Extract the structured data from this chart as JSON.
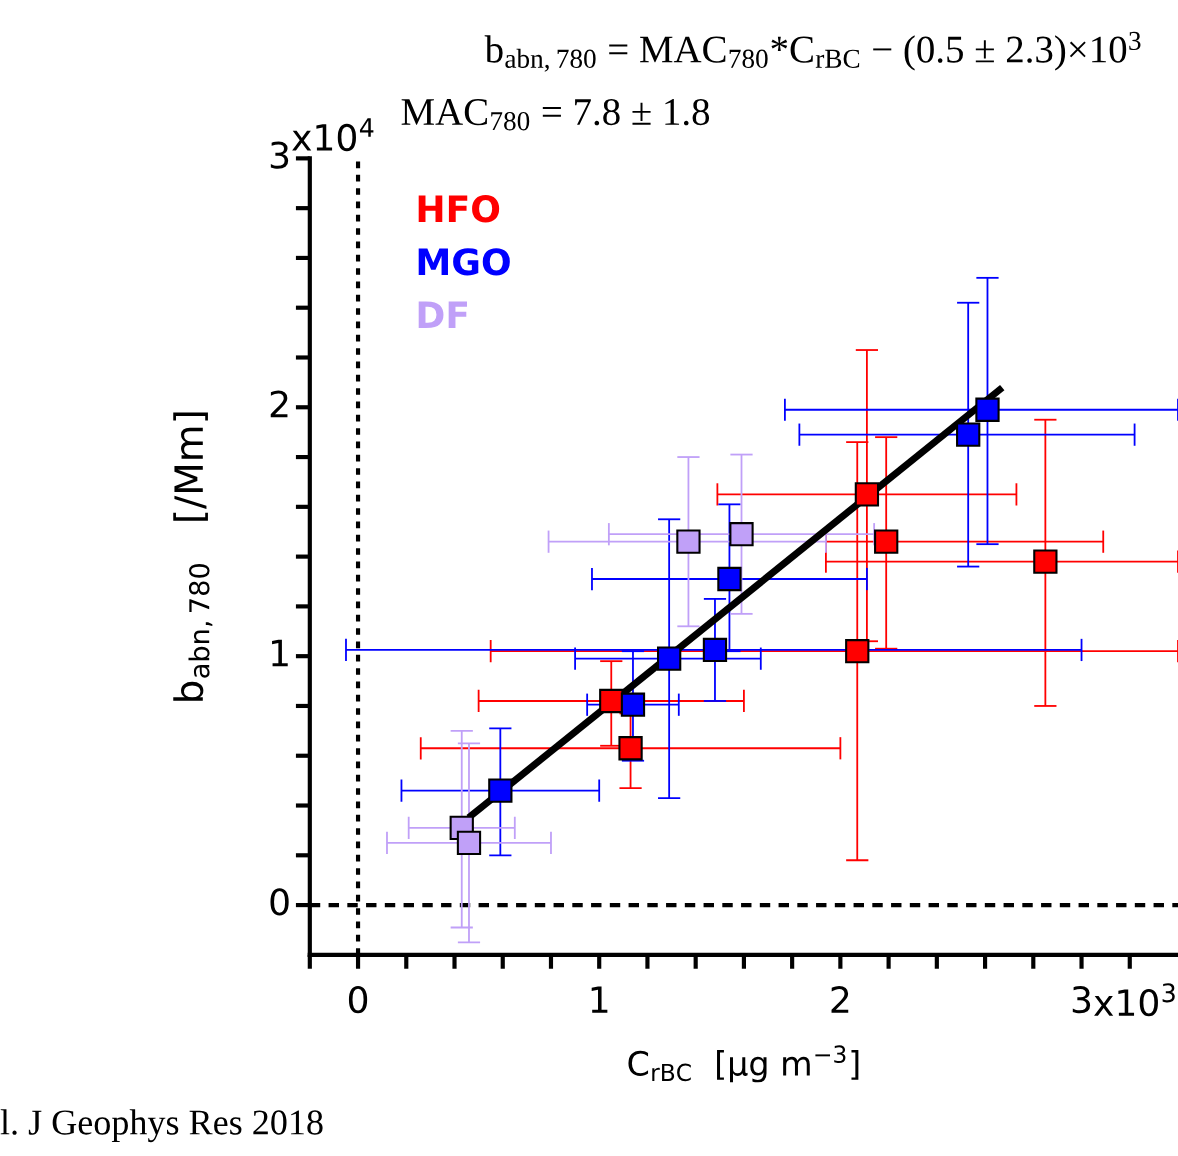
{
  "chart_data": {
    "type": "scatter",
    "title": "b$_{abn,780}$ = MAC$_{780}$*C$_{rBC}$ − (0.5 ± 2.3)×10$^{3}$",
    "subtitle": "MAC$_{780}$ = 7.8 ± 1.8",
    "xlabel": "C$_{rBC}$  [μg m$^{−3}$]",
    "ylabel": "b$_{abn,780}$   [/Mm]",
    "annotations": [
      "l. J Geophys Res 2018",
      "x10$^{3}$",
      "x10$^{4}$"
    ],
    "marker": "square",
    "legend": "top left",
    "grid": false,
    "xlim": [
      -0.2,
      3.4
    ],
    "ylim": [
      -0.2,
      3.0
    ],
    "xticks": [
      {
        "value": -0.2,
        "label": null
      },
      0,
      {
        "value": 0.2,
        "label": null
      },
      {
        "value": 0.4,
        "label": null
      },
      {
        "value": 0.6,
        "label": null
      },
      {
        "value": 0.8,
        "label": null
      },
      1,
      {
        "value": 1.2,
        "label": null
      },
      {
        "value": 1.4,
        "label": null
      },
      {
        "value": 1.6,
        "label": null
      },
      {
        "value": 1.8,
        "label": null
      },
      2,
      {
        "value": 2.2,
        "label": null
      },
      {
        "value": 2.4,
        "label": null
      },
      {
        "value": 2.6,
        "label": null
      },
      {
        "value": 2.8,
        "label": null
      },
      3,
      {
        "value": 3.2,
        "label": null
      }
    ],
    "yticks": [
      0,
      {
        "value": 0.2,
        "label": null
      },
      {
        "value": 0.4,
        "label": null
      },
      {
        "value": 0.6,
        "label": null
      },
      {
        "value": 0.8,
        "label": null
      },
      1,
      {
        "value": 1.2,
        "label": null
      },
      {
        "value": 1.4,
        "label": null
      },
      {
        "value": 1.6,
        "label": null
      },
      {
        "value": 1.8,
        "label": null
      },
      2,
      {
        "value": 2.2,
        "label": null
      },
      {
        "value": 2.4,
        "label": null
      },
      {
        "value": 2.6,
        "label": null
      },
      {
        "value": 2.8,
        "label": null
      },
      3
    ],
    "ref_lines": [
      {
        "axis": "x",
        "value": 0,
        "color": "#000000",
        "line_style": "dotted"
      },
      {
        "axis": "y",
        "value": 0,
        "color": "#000000",
        "line_style": "dashed"
      }
    ],
    "series": [
      {
        "name": "HFO",
        "color": "#ff0000",
        "x": [
          1.05,
          1.13,
          2.07,
          2.11,
          2.19,
          2.85
        ],
        "values": [
          0.82,
          0.63,
          1.02,
          1.65,
          1.46,
          1.38
        ],
        "errors": [
          [
            0.64,
            0.98
          ],
          [
            0.47,
            0.77
          ],
          [
            0.18,
            1.86
          ],
          [
            1.06,
            2.23
          ],
          [
            1.03,
            1.88
          ],
          [
            0.8,
            1.95
          ]
        ],
        "xerrors": [
          [
            0.5,
            1.6
          ],
          [
            0.26,
            2.0
          ],
          [
            0.55,
            3.4
          ],
          [
            1.49,
            2.73
          ],
          [
            1.94,
            3.09
          ],
          [
            1.94,
            3.4
          ]
        ]
      },
      {
        "name": "MGO",
        "color": "#0000ff",
        "x": [
          0.59,
          1.14,
          1.29,
          1.48,
          1.54,
          2.53,
          2.61
        ],
        "values": [
          0.46,
          0.805,
          0.99,
          1.025,
          1.31,
          1.89,
          1.99
        ],
        "errors": [
          [
            0.2,
            0.71
          ],
          [
            0.58,
            1.02
          ],
          [
            0.43,
            1.55
          ],
          [
            0.82,
            1.23
          ],
          [
            1.02,
            1.61
          ],
          [
            1.36,
            2.42
          ],
          [
            1.45,
            2.52
          ]
        ],
        "xerrors": [
          [
            0.18,
            1.0
          ],
          [
            0.95,
            1.33
          ],
          [
            0.9,
            1.67
          ],
          [
            -0.05,
            3.0
          ],
          [
            0.97,
            2.11
          ],
          [
            1.83,
            3.22
          ],
          [
            1.77,
            3.4
          ]
        ]
      },
      {
        "name": "DF",
        "color": "#c0a0f8",
        "x": [
          0.43,
          0.46,
          1.37,
          1.59
        ],
        "values": [
          0.31,
          0.25,
          1.46,
          1.49
        ],
        "errors": [
          [
            -0.09,
            0.7
          ],
          [
            -0.15,
            0.65
          ],
          [
            1.12,
            1.8
          ],
          [
            1.17,
            1.81
          ]
        ],
        "xerrors": [
          [
            0.21,
            0.65
          ],
          [
            0.12,
            0.8
          ],
          [
            0.79,
            1.94
          ],
          [
            1.04,
            2.14
          ]
        ]
      },
      {
        "type": "line",
        "color": "#000000",
        "marker": "none",
        "x": [
          0.47,
          2.66
        ],
        "values": [
          0.36,
          2.07
        ]
      }
    ]
  }
}
